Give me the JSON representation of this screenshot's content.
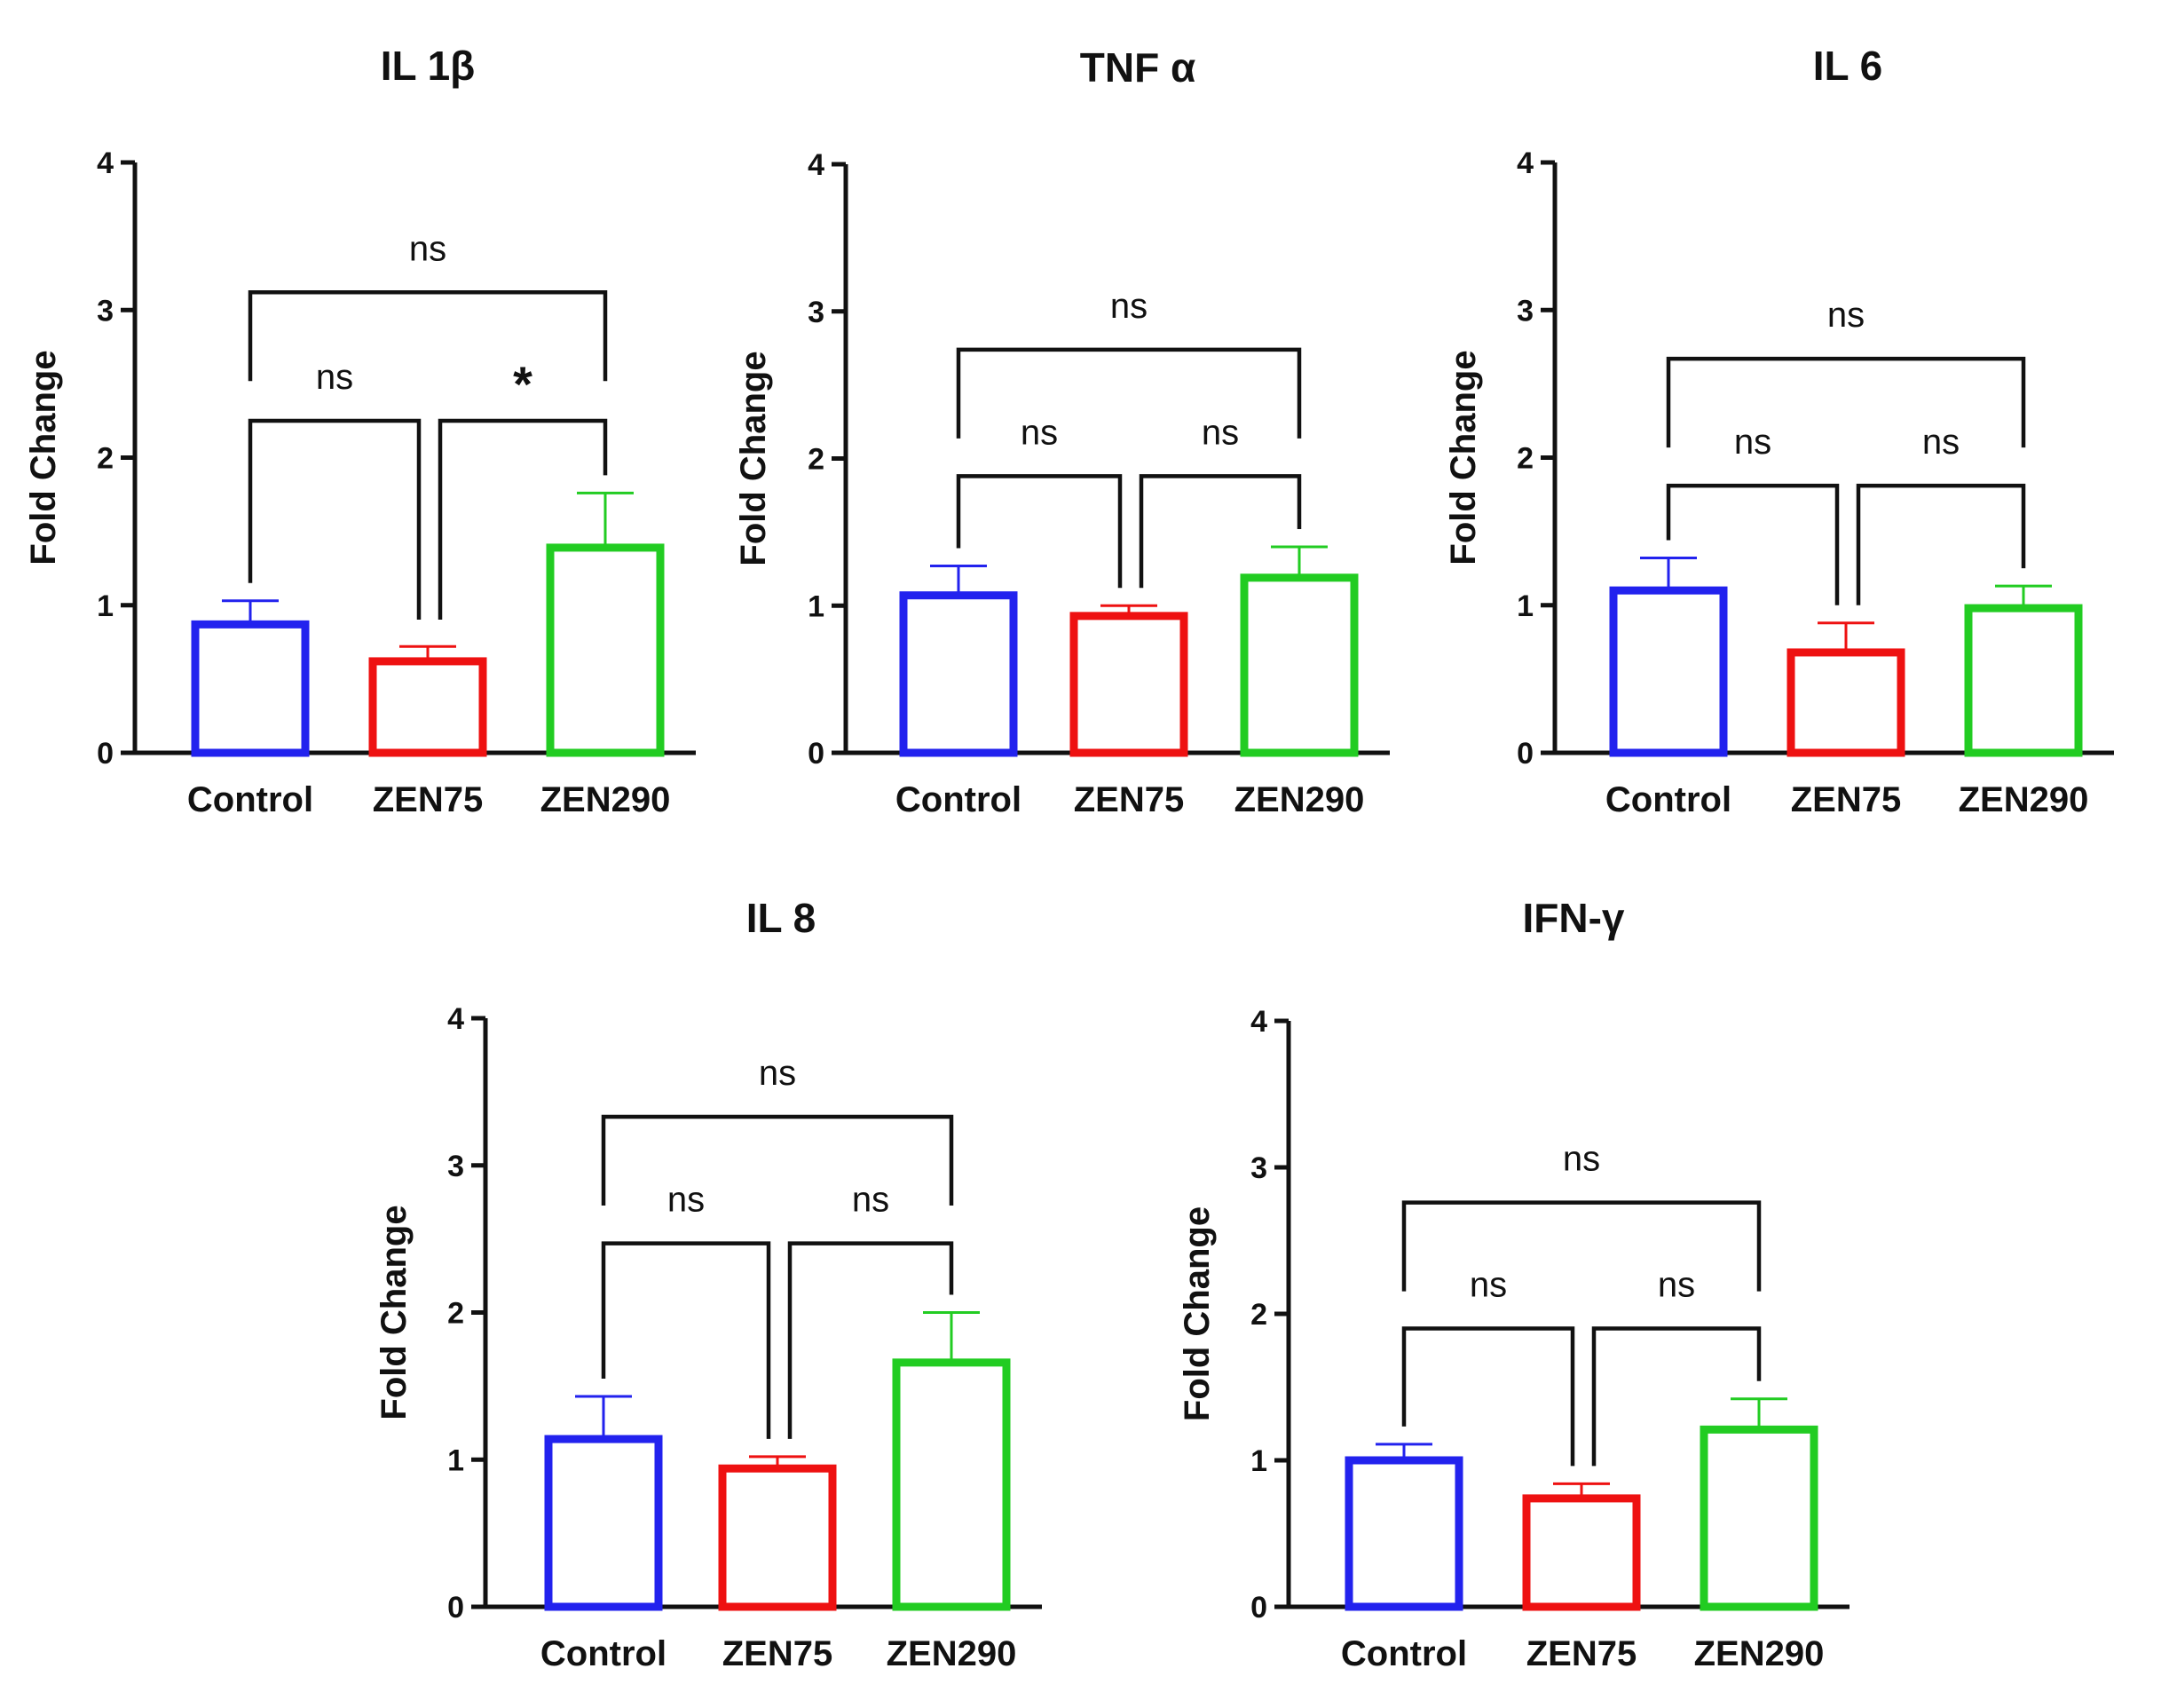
{
  "chart_data": [
    {
      "type": "bar",
      "title": "IL 1β",
      "ylabel": "Fold Change",
      "xlabel": "",
      "ylim": [
        0,
        4
      ],
      "yticks": [
        0,
        1,
        2,
        3,
        4
      ],
      "categories": [
        "Control",
        "ZEN75",
        "ZEN290"
      ],
      "values": [
        0.87,
        0.62,
        1.39
      ],
      "errors": [
        0.16,
        0.1,
        0.37
      ],
      "colors": [
        "#2222ee",
        "#ee1111",
        "#22cc22"
      ],
      "comparisons": [
        {
          "from": 0,
          "to": 1,
          "label": "ns",
          "level": 2.25
        },
        {
          "from": 1,
          "to": 2,
          "label": "*",
          "level": 2.25
        },
        {
          "from": 0,
          "to": 2,
          "label": "ns",
          "level": 3.12
        }
      ]
    },
    {
      "type": "bar",
      "title": "TNF α",
      "ylabel": "Fold Change",
      "xlabel": "",
      "ylim": [
        0,
        4
      ],
      "yticks": [
        0,
        1,
        2,
        3,
        4
      ],
      "categories": [
        "Control",
        "ZEN75",
        "ZEN290"
      ],
      "values": [
        1.07,
        0.93,
        1.19
      ],
      "errors": [
        0.2,
        0.07,
        0.21
      ],
      "colors": [
        "#2222ee",
        "#ee1111",
        "#22cc22"
      ],
      "comparisons": [
        {
          "from": 0,
          "to": 1,
          "label": "ns",
          "level": 1.88
        },
        {
          "from": 1,
          "to": 2,
          "label": "ns",
          "level": 1.88
        },
        {
          "from": 0,
          "to": 2,
          "label": "ns",
          "level": 2.74
        }
      ]
    },
    {
      "type": "bar",
      "title": "IL 6",
      "ylabel": "Fold Change",
      "xlabel": "",
      "ylim": [
        0,
        4
      ],
      "yticks": [
        0,
        1,
        2,
        3,
        4
      ],
      "categories": [
        "Control",
        "ZEN75",
        "ZEN290"
      ],
      "values": [
        1.1,
        0.68,
        0.98
      ],
      "errors": [
        0.22,
        0.2,
        0.15
      ],
      "colors": [
        "#2222ee",
        "#ee1111",
        "#22cc22"
      ],
      "comparisons": [
        {
          "from": 0,
          "to": 1,
          "label": "ns",
          "level": 1.81
        },
        {
          "from": 1,
          "to": 2,
          "label": "ns",
          "level": 1.81
        },
        {
          "from": 0,
          "to": 2,
          "label": "ns",
          "level": 2.67
        }
      ]
    },
    {
      "type": "bar",
      "title": "IL 8",
      "ylabel": "Fold Change",
      "xlabel": "",
      "ylim": [
        0,
        4
      ],
      "yticks": [
        0,
        1,
        2,
        3,
        4
      ],
      "categories": [
        "Control",
        "ZEN75",
        "ZEN290"
      ],
      "values": [
        1.14,
        0.94,
        1.66
      ],
      "errors": [
        0.29,
        0.08,
        0.34
      ],
      "colors": [
        "#2222ee",
        "#ee1111",
        "#22cc22"
      ],
      "comparisons": [
        {
          "from": 0,
          "to": 1,
          "label": "ns",
          "level": 2.47
        },
        {
          "from": 1,
          "to": 2,
          "label": "ns",
          "level": 2.47
        },
        {
          "from": 0,
          "to": 2,
          "label": "ns",
          "level": 3.33
        }
      ]
    },
    {
      "type": "bar",
      "title": "IFN-γ",
      "ylabel": "Fold Change",
      "xlabel": "",
      "ylim": [
        0,
        4
      ],
      "yticks": [
        0,
        1,
        2,
        3,
        4
      ],
      "categories": [
        "Control",
        "ZEN75",
        "ZEN290"
      ],
      "values": [
        1.0,
        0.74,
        1.21
      ],
      "errors": [
        0.11,
        0.1,
        0.21
      ],
      "colors": [
        "#2222ee",
        "#ee1111",
        "#22cc22"
      ],
      "comparisons": [
        {
          "from": 0,
          "to": 1,
          "label": "ns",
          "level": 1.9
        },
        {
          "from": 1,
          "to": 2,
          "label": "ns",
          "level": 1.9
        },
        {
          "from": 0,
          "to": 2,
          "label": "ns",
          "level": 2.76
        }
      ]
    }
  ]
}
